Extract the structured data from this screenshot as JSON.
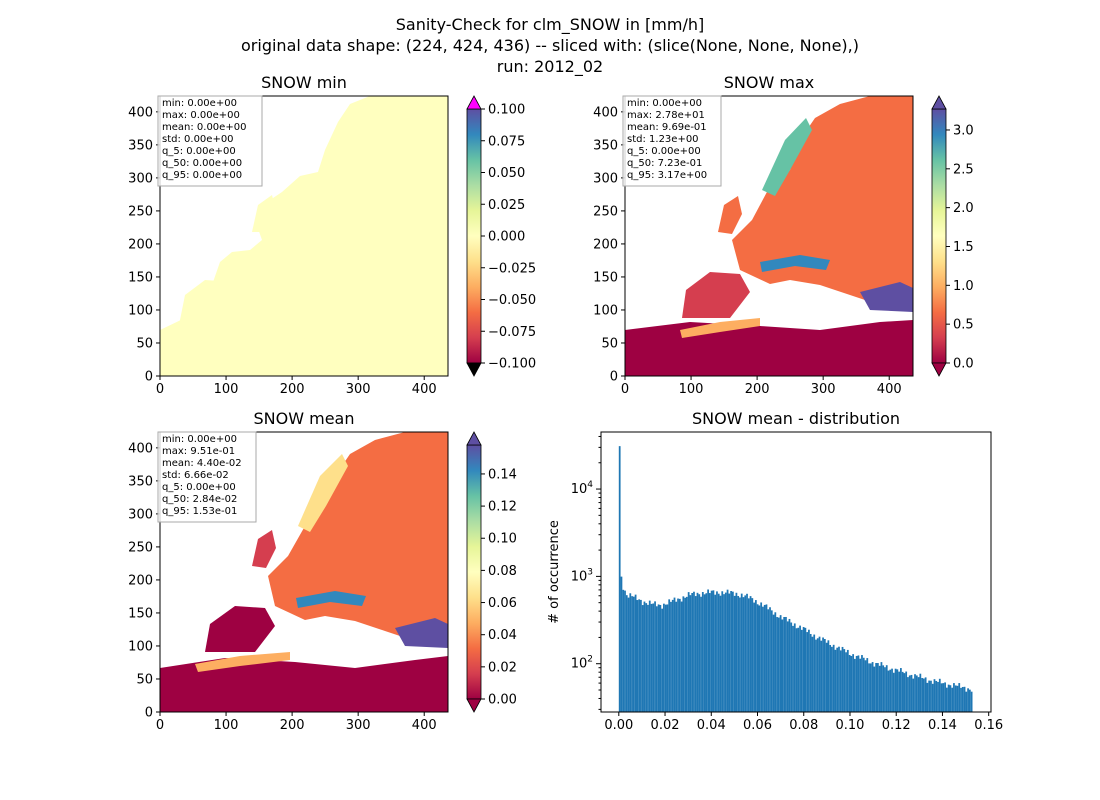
{
  "figure": {
    "suptitle_lines": [
      "Sanity-Check for clm_SNOW in [mm/h]",
      "original data shape: (224, 424, 436) -- sliced with: (slice(None, None, None),)",
      "run: 2012_02"
    ]
  },
  "colors": {
    "spectral": [
      "#9e0142",
      "#d53e4f",
      "#f46d43",
      "#fdae61",
      "#fee08b",
      "#ffffbf",
      "#e6f598",
      "#abdda4",
      "#66c2a5",
      "#3288bd",
      "#5e4fa2"
    ],
    "min_over": "#ff00ff",
    "min_under": "#000000",
    "hist_bar": "#1f77b4",
    "land_min": "#ffffbf"
  },
  "chart_data": [
    {
      "type": "heatmap",
      "title": "SNOW min",
      "x_ticks": [
        "0",
        "100",
        "200",
        "300",
        "400"
      ],
      "y_ticks": [
        "0",
        "50",
        "100",
        "150",
        "200",
        "250",
        "300",
        "350",
        "400"
      ],
      "xlim": [
        0,
        436
      ],
      "ylim": [
        0,
        424
      ],
      "colorbar": {
        "range": [
          -0.1,
          0.1
        ],
        "ticks": [
          "0.100",
          "0.075",
          "0.050",
          "0.025",
          "0.000",
          "−0.025",
          "−0.050",
          "−0.075",
          "−0.100"
        ],
        "extend": "both"
      },
      "stats": [
        "min: 0.00e+00",
        "max: 0.00e+00",
        "mean: 0.00e+00",
        "std: 0.00e+00",
        "q_5: 0.00e+00",
        "q_50: 0.00e+00",
        "q_95: 0.00e+00"
      ]
    },
    {
      "type": "heatmap",
      "title": "SNOW max",
      "x_ticks": [
        "0",
        "100",
        "200",
        "300",
        "400"
      ],
      "y_ticks": [
        "0",
        "50",
        "100",
        "150",
        "200",
        "250",
        "300",
        "350",
        "400"
      ],
      "xlim": [
        0,
        436
      ],
      "ylim": [
        0,
        424
      ],
      "colorbar": {
        "range": [
          0,
          3.27
        ],
        "ticks": [
          "3.0",
          "2.5",
          "2.0",
          "1.5",
          "1.0",
          "0.5",
          "0.0"
        ],
        "extend": "both"
      },
      "stats": [
        "min: 0.00e+00",
        "max: 2.78e+01",
        "mean: 9.69e-01",
        "std: 1.23e+00",
        "q_5: 0.00e+00",
        "q_50: 7.23e-01",
        "q_95: 3.17e+00"
      ]
    },
    {
      "type": "heatmap",
      "title": "SNOW mean",
      "x_ticks": [
        "0",
        "100",
        "200",
        "300",
        "400"
      ],
      "y_ticks": [
        "0",
        "50",
        "100",
        "150",
        "200",
        "250",
        "300",
        "350",
        "400"
      ],
      "xlim": [
        0,
        436
      ],
      "ylim": [
        0,
        424
      ],
      "colorbar": {
        "range": [
          0,
          0.158
        ],
        "ticks": [
          "0.14",
          "0.12",
          "0.10",
          "0.08",
          "0.06",
          "0.04",
          "0.02",
          "0.00"
        ],
        "extend": "both"
      },
      "stats": [
        "min: 0.00e+00",
        "max: 9.51e-01",
        "mean: 4.40e-02",
        "std: 6.66e-02",
        "q_5: 0.00e+00",
        "q_50: 2.84e-02",
        "q_95: 1.53e-01"
      ]
    },
    {
      "type": "bar",
      "title": "SNOW mean - distribution",
      "xlabel": "",
      "ylabel": "# of occurrence",
      "yscale": "log",
      "xlim": [
        -0.0077,
        0.161
      ],
      "ylim": [
        28,
        45000
      ],
      "x_ticks": [
        "0.00",
        "0.02",
        "0.04",
        "0.06",
        "0.08",
        "0.10",
        "0.12",
        "0.14",
        "0.16"
      ],
      "y_ticks": [
        "10^2",
        "10^3",
        "10^4"
      ],
      "bin_range": [
        0,
        0.153
      ],
      "bins": 200,
      "profile": [
        [
          0.0,
          31000
        ],
        [
          0.00077,
          950
        ],
        [
          0.0015,
          780
        ],
        [
          0.003,
          620
        ],
        [
          0.006,
          580
        ],
        [
          0.01,
          520
        ],
        [
          0.014,
          480
        ],
        [
          0.018,
          470
        ],
        [
          0.022,
          510
        ],
        [
          0.026,
          560
        ],
        [
          0.03,
          610
        ],
        [
          0.034,
          640
        ],
        [
          0.038,
          650
        ],
        [
          0.042,
          660
        ],
        [
          0.046,
          650
        ],
        [
          0.05,
          640
        ],
        [
          0.054,
          600
        ],
        [
          0.058,
          540
        ],
        [
          0.062,
          470
        ],
        [
          0.066,
          400
        ],
        [
          0.07,
          340
        ],
        [
          0.075,
          290
        ],
        [
          0.08,
          245
        ],
        [
          0.085,
          205
        ],
        [
          0.09,
          175
        ],
        [
          0.095,
          150
        ],
        [
          0.1,
          130
        ],
        [
          0.105,
          115
        ],
        [
          0.11,
          102
        ],
        [
          0.115,
          92
        ],
        [
          0.12,
          84
        ],
        [
          0.125,
          76
        ],
        [
          0.13,
          70
        ],
        [
          0.135,
          64
        ],
        [
          0.14,
          60
        ],
        [
          0.145,
          56
        ],
        [
          0.15,
          53
        ],
        [
          0.153,
          50
        ]
      ]
    }
  ]
}
